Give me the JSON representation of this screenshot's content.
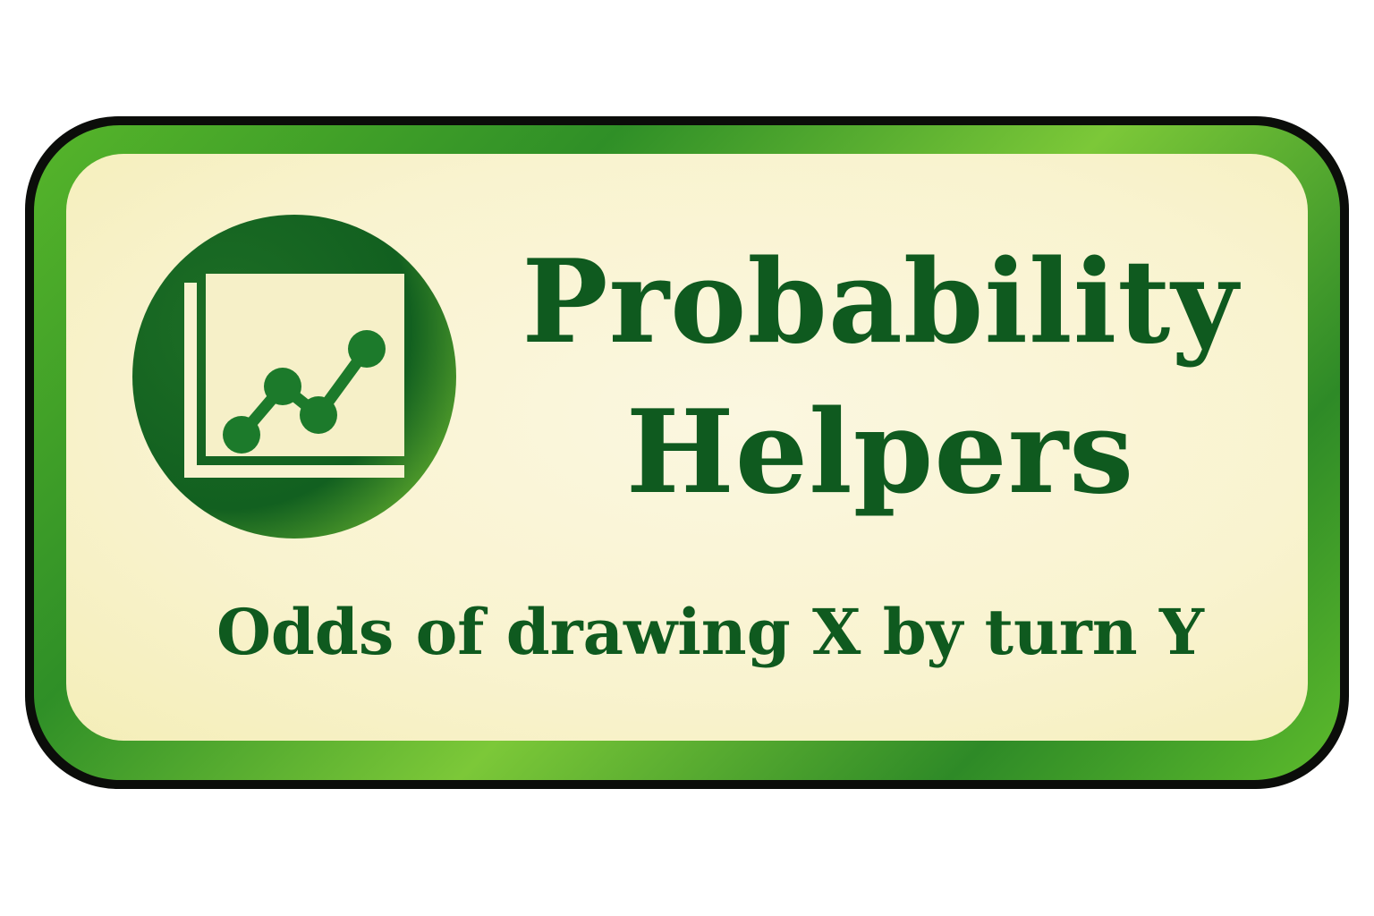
{
  "badge": {
    "title_line1": "Probability",
    "title_line2": "Helpers",
    "subtitle": "Odds of drawing X by turn Y",
    "icon": "line-chart-icon"
  },
  "colors": {
    "text": "#0f5a1f",
    "frame_green": "#3a9a2a",
    "panel": "#faf5d6",
    "outline": "#0b0d0a"
  }
}
